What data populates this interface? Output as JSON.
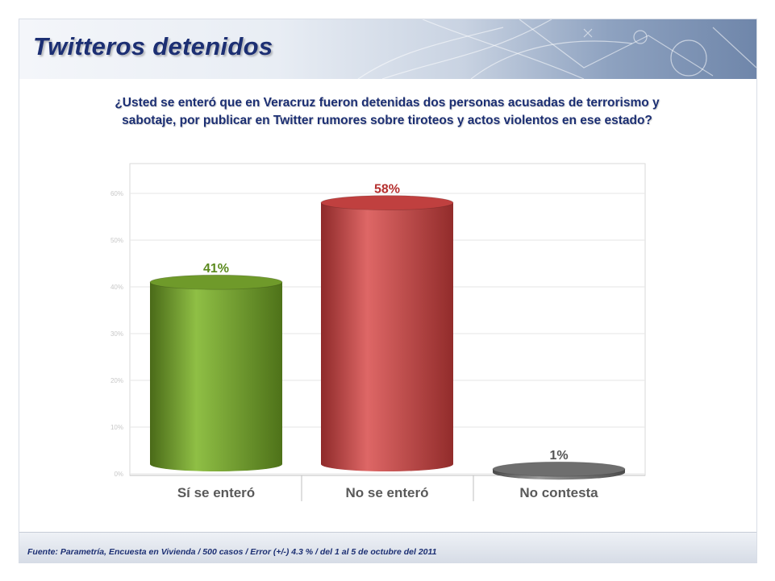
{
  "slide": {
    "title": "Twitteros detenidos",
    "question": "¿Usted se enteró que en Veracruz fueron detenidas dos personas acusadas de terrorismo y sabotaje, por publicar en Twitter rumores sobre tiroteos y actos violentos en ese estado?"
  },
  "chart_data": {
    "type": "bar",
    "categories": [
      "Sí se enteró",
      "No se enteró",
      "No contesta"
    ],
    "values": [
      41,
      58,
      1
    ],
    "data_labels": [
      "41%",
      "58%",
      "1%"
    ],
    "y_ticks": [
      "0%",
      "10%",
      "20%",
      "30%",
      "40%",
      "50%",
      "60%"
    ],
    "ylim": [
      0,
      60
    ],
    "grid": true,
    "colors": [
      "#6f9a2a",
      "#c0403f",
      "#6e6e6e"
    ],
    "label_colors": [
      "#5b8a1e",
      "#b5302f",
      "#555555"
    ]
  },
  "footer": {
    "source": "Fuente: Parametría, Encuesta en Vivienda / 500 casos / Error (+/-) 4.3 % / del 1 al 5 de octubre del 2011"
  }
}
